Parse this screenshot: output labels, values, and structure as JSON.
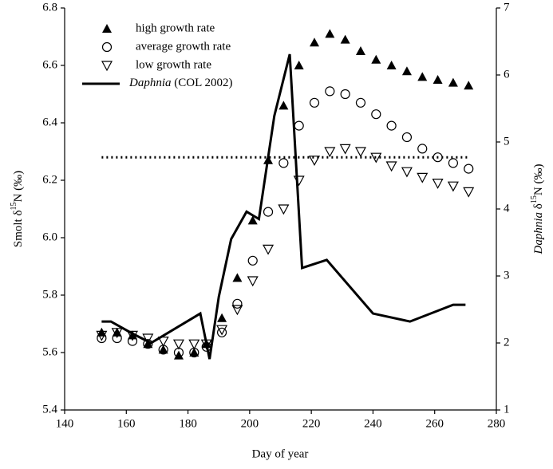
{
  "chart_data": {
    "type": "scatter-line",
    "x_label": "Day of year",
    "y_label": [
      "Smolt δ",
      "15",
      "N (‰)"
    ],
    "y2_label": [
      "Daphnia",
      " δ",
      "15",
      "N (‰)"
    ],
    "xlim": [
      140,
      280
    ],
    "xticks": [
      140,
      160,
      180,
      200,
      220,
      240,
      260,
      280
    ],
    "ylim": [
      5.4,
      6.8
    ],
    "yticks": [
      5.4,
      5.6,
      5.8,
      {
        "value": 6,
        "label": "6.0"
      },
      6.2,
      6.4,
      6.6,
      6.8
    ],
    "y2lim": [
      1,
      7
    ],
    "y2ticks": [
      1,
      2,
      3,
      4,
      5,
      6,
      7
    ],
    "x": [
      152,
      157,
      162,
      167,
      172,
      177,
      182,
      186,
      191,
      196,
      201,
      206,
      211,
      216,
      221,
      226,
      231,
      236,
      241,
      246,
      251,
      256,
      261,
      266,
      271
    ],
    "reference_line": 6.28,
    "legend": "upper left",
    "series": [
      {
        "name": "high growth rate",
        "color": "#000000",
        "marker": "triangle-filled",
        "values": [
          5.67,
          5.67,
          5.66,
          5.63,
          5.61,
          5.59,
          5.6,
          5.63,
          5.72,
          5.86,
          6.06,
          6.27,
          6.46,
          6.6,
          6.68,
          6.71,
          6.69,
          6.65,
          6.62,
          6.6,
          6.58,
          6.56,
          6.55,
          6.54,
          6.53
        ]
      },
      {
        "name": "average growth rate",
        "color": "#000000",
        "marker": "circle-open",
        "values": [
          5.65,
          5.65,
          5.64,
          5.63,
          5.61,
          5.6,
          5.6,
          5.62,
          5.67,
          5.77,
          5.92,
          6.09,
          6.26,
          6.39,
          6.47,
          6.51,
          6.5,
          6.47,
          6.43,
          6.39,
          6.35,
          6.31,
          6.28,
          6.26,
          6.24
        ]
      },
      {
        "name": "low growth rate",
        "color": "#000000",
        "marker": "triangle-down-open",
        "values": [
          5.66,
          5.67,
          5.66,
          5.65,
          5.64,
          5.63,
          5.63,
          5.63,
          5.68,
          5.75,
          5.85,
          5.96,
          6.1,
          6.2,
          6.27,
          6.3,
          6.31,
          6.3,
          6.28,
          6.25,
          6.23,
          6.21,
          6.19,
          6.18,
          6.16
        ]
      },
      {
        "name": "Daphnia (COL 2002)",
        "color": "#000000",
        "marker": "line",
        "axis": "y2",
        "x": [
          152,
          155,
          162,
          168,
          184,
          187,
          190,
          194,
          199,
          203,
          208,
          213,
          217,
          225,
          240,
          252,
          266,
          270
        ],
        "values": [
          2.32,
          2.32,
          2.14,
          2.0,
          2.44,
          1.76,
          2.69,
          3.55,
          3.96,
          3.85,
          5.39,
          6.31,
          3.12,
          3.24,
          2.44,
          2.32,
          2.57,
          2.57
        ]
      }
    ]
  }
}
